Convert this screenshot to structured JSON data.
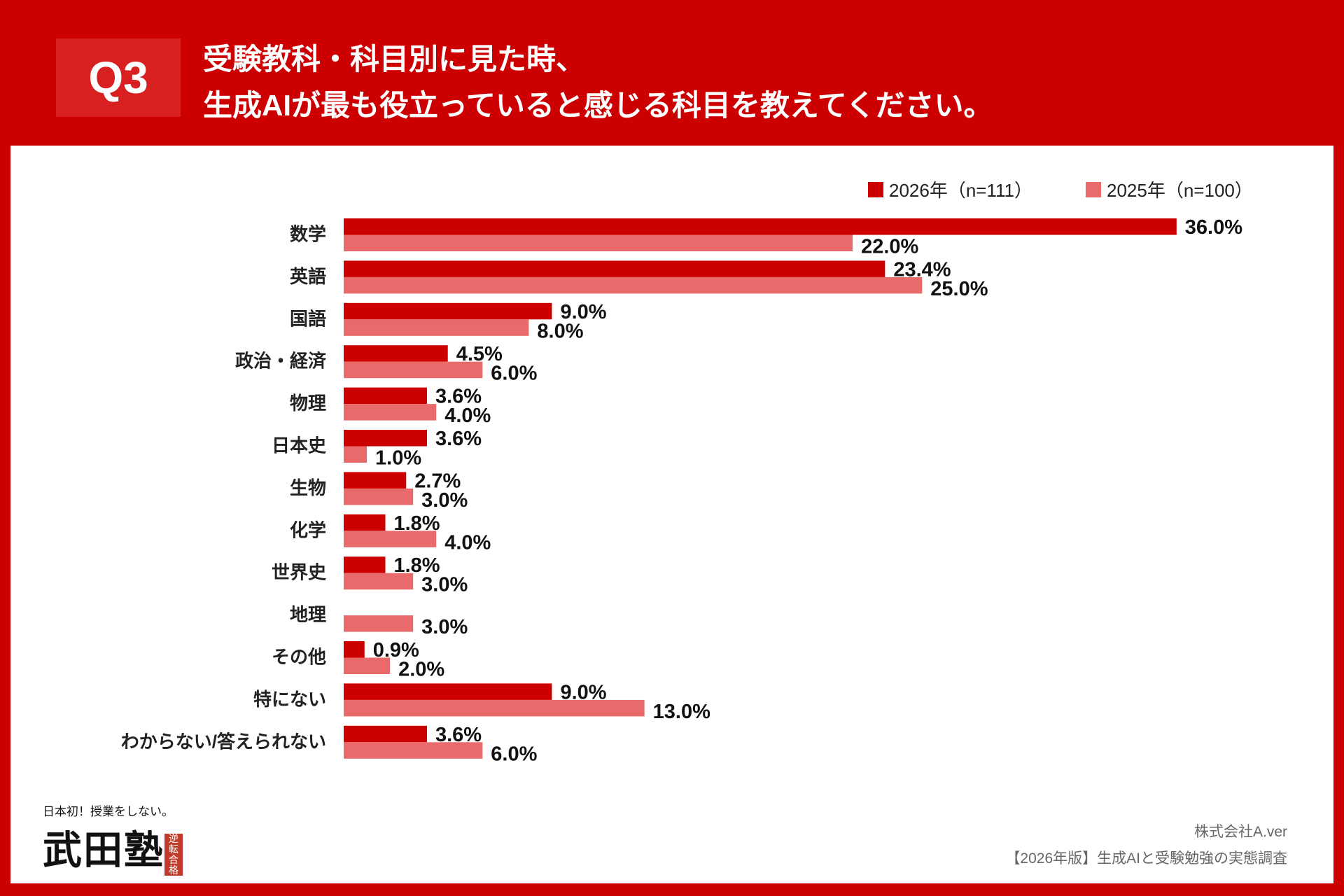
{
  "header": {
    "question_no": "Q3",
    "title_line1": "受験教科・科目別に見た時、",
    "title_line2": "生成AIが最も役立っていると感じる科目を教えてください。"
  },
  "colors": {
    "background": "#cc0000",
    "series_2026": "#cc0000",
    "series_2025": "#e86a6a"
  },
  "chart_data": {
    "type": "bar",
    "orientation": "horizontal",
    "categories": [
      "数学",
      "英語",
      "国語",
      "政治・経済",
      "物理",
      "日本史",
      "生物",
      "化学",
      "世界史",
      "地理",
      "その他",
      "特にない",
      "わからない/答えられない"
    ],
    "series": [
      {
        "name": "2026年（n=111）",
        "values": [
          36.0,
          23.4,
          9.0,
          4.5,
          3.6,
          3.6,
          2.7,
          1.8,
          1.8,
          null,
          0.9,
          9.0,
          3.6
        ]
      },
      {
        "name": "2025年（n=100）",
        "values": [
          22.0,
          25.0,
          8.0,
          6.0,
          4.0,
          1.0,
          3.0,
          4.0,
          3.0,
          3.0,
          2.0,
          13.0,
          6.0
        ]
      }
    ],
    "unit": "%",
    "legend": "top-right",
    "grid": false
  },
  "footer": {
    "company": "株式会社A.ver",
    "survey": "【2026年版】生成AIと受験勉強の実態調査"
  },
  "logo": {
    "tagline": "日本初！授業をしない。",
    "name": "武田塾",
    "stamp": "逆転合格"
  }
}
